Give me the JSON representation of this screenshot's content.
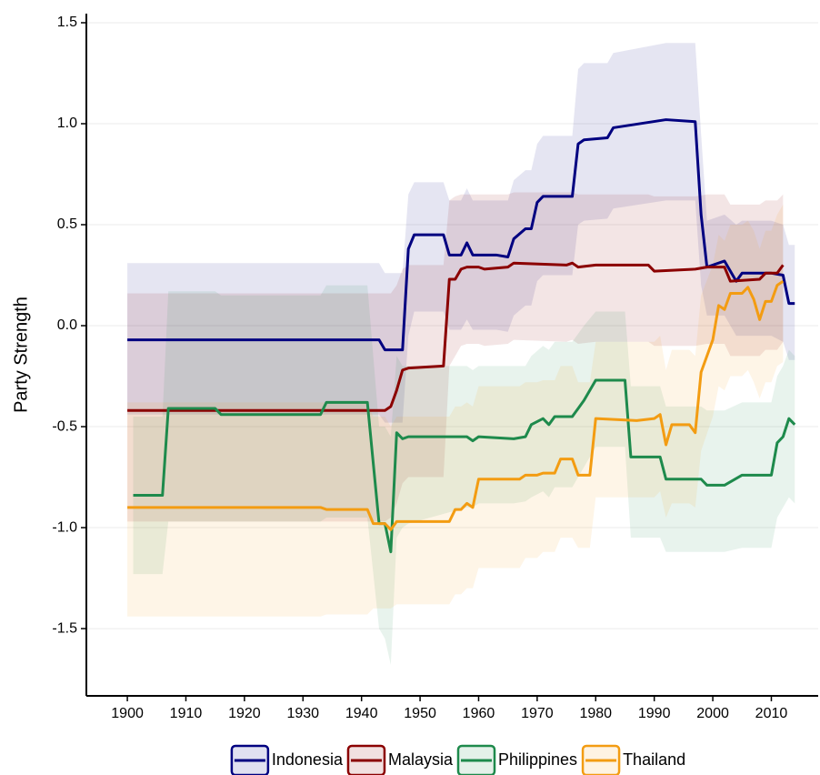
{
  "chart_data": {
    "type": "line",
    "y_label": "Party Strength",
    "xlim": [
      1893,
      2018
    ],
    "ylim": [
      -1.833,
      1.545
    ],
    "xticks": [
      1900,
      1910,
      1920,
      1930,
      1940,
      1950,
      1960,
      1970,
      1980,
      1990,
      2000,
      2010
    ],
    "yticks": [
      -1.5,
      {
        "value": -1,
        "label": "-1.0"
      },
      -0.5,
      {
        "value": 0,
        "label": "0.0"
      },
      0.5,
      {
        "value": 1,
        "label": "1.0"
      },
      1.5
    ],
    "grid": true,
    "legend": "bottom",
    "series": [
      {
        "name": "Indonesia",
        "color": "#000080",
        "x": [
          1900,
          1942,
          1943,
          1944,
          1947,
          1948,
          1949,
          1954,
          1955,
          1957,
          1958,
          1959,
          1963,
          1965,
          1966,
          1968,
          1969,
          1970,
          1971,
          1976,
          1977,
          1978,
          1982,
          1983,
          1992,
          1997,
          1998,
          1999,
          2002,
          2004,
          2005,
          2010,
          2012,
          2013,
          2014
        ],
        "values": [
          -0.07,
          -0.07,
          -0.07,
          -0.12,
          -0.12,
          0.38,
          0.45,
          0.45,
          0.35,
          0.35,
          0.41,
          0.35,
          0.35,
          0.34,
          0.43,
          0.48,
          0.48,
          0.61,
          0.64,
          0.64,
          0.9,
          0.92,
          0.93,
          0.98,
          1.02,
          1.01,
          0.55,
          0.29,
          0.32,
          0.22,
          0.26,
          0.26,
          0.25,
          0.11,
          0.11
        ],
        "lower": [
          -0.44,
          -0.44,
          -0.44,
          -0.48,
          -0.48,
          -0.05,
          0.07,
          0.07,
          -0.02,
          -0.02,
          0.03,
          -0.02,
          -0.02,
          -0.03,
          0.05,
          0.1,
          0.1,
          0.22,
          0.25,
          0.25,
          0.5,
          0.52,
          0.53,
          0.58,
          0.62,
          0.62,
          0.2,
          0.05,
          0.05,
          -0.05,
          -0.05,
          -0.05,
          -0.08,
          -0.17,
          -0.17
        ],
        "upper": [
          0.31,
          0.31,
          0.31,
          0.26,
          0.26,
          0.65,
          0.71,
          0.71,
          0.62,
          0.62,
          0.68,
          0.62,
          0.62,
          0.62,
          0.72,
          0.77,
          0.77,
          0.9,
          0.94,
          0.94,
          1.27,
          1.3,
          1.3,
          1.35,
          1.4,
          1.4,
          0.95,
          0.52,
          0.55,
          0.5,
          0.52,
          0.52,
          0.5,
          0.4,
          0.4
        ]
      },
      {
        "name": "Malaysia",
        "color": "#8b0000",
        "x": [
          1900,
          1944,
          1945,
          1946,
          1947,
          1948,
          1954,
          1955,
          1956,
          1957,
          1958,
          1960,
          1961,
          1965,
          1966,
          1975,
          1976,
          1977,
          1980,
          1989,
          1990,
          1997,
          1999,
          2002,
          2003,
          2008,
          2009,
          2011,
          2012
        ],
        "values": [
          -0.42,
          -0.42,
          -0.4,
          -0.32,
          -0.22,
          -0.21,
          -0.2,
          0.23,
          0.23,
          0.28,
          0.29,
          0.29,
          0.28,
          0.29,
          0.31,
          0.3,
          0.31,
          0.29,
          0.3,
          0.3,
          0.27,
          0.28,
          0.29,
          0.29,
          0.22,
          0.23,
          0.26,
          0.26,
          0.3
        ],
        "lower": [
          -0.97,
          -0.97,
          -0.95,
          -0.88,
          -0.78,
          -0.75,
          -0.75,
          -0.2,
          -0.15,
          -0.1,
          -0.09,
          -0.09,
          -0.1,
          -0.09,
          -0.07,
          -0.08,
          -0.07,
          -0.09,
          -0.08,
          -0.08,
          -0.1,
          -0.1,
          -0.09,
          -0.09,
          -0.15,
          -0.15,
          -0.12,
          -0.12,
          -0.08
        ],
        "upper": [
          0.16,
          0.16,
          0.16,
          0.2,
          0.28,
          0.3,
          0.3,
          0.62,
          0.64,
          0.65,
          0.65,
          0.65,
          0.65,
          0.65,
          0.66,
          0.66,
          0.66,
          0.65,
          0.65,
          0.65,
          0.64,
          0.64,
          0.65,
          0.65,
          0.6,
          0.6,
          0.62,
          0.62,
          0.65
        ]
      },
      {
        "name": "Philippines",
        "color": "#1e8a4c",
        "x": [
          1901,
          1906,
          1907,
          1915,
          1916,
          1933,
          1934,
          1941,
          1943,
          1944,
          1945,
          1946,
          1947,
          1948,
          1958,
          1959,
          1960,
          1966,
          1968,
          1969,
          1971,
          1972,
          1973,
          1976,
          1978,
          1980,
          1985,
          1986,
          1991,
          1992,
          1998,
          1999,
          2002,
          2005,
          2010,
          2011,
          2012,
          2013,
          2014
        ],
        "values": [
          -0.84,
          -0.84,
          -0.41,
          -0.41,
          -0.44,
          -0.44,
          -0.38,
          -0.38,
          -0.98,
          -0.98,
          -1.12,
          -0.53,
          -0.56,
          -0.55,
          -0.55,
          -0.57,
          -0.55,
          -0.56,
          -0.55,
          -0.49,
          -0.46,
          -0.49,
          -0.45,
          -0.45,
          -0.37,
          -0.27,
          -0.27,
          -0.65,
          -0.65,
          -0.76,
          -0.76,
          -0.79,
          -0.79,
          -0.74,
          -0.74,
          -0.58,
          -0.55,
          -0.46,
          -0.49
        ],
        "lower": [
          -1.23,
          -1.23,
          -0.97,
          -0.97,
          -0.97,
          -0.97,
          -0.95,
          -0.95,
          -1.5,
          -1.55,
          -1.68,
          -1.05,
          -1.0,
          -0.98,
          -0.9,
          -0.9,
          -0.88,
          -0.88,
          -0.87,
          -0.85,
          -0.82,
          -0.85,
          -0.8,
          -0.8,
          -0.7,
          -0.6,
          -0.6,
          -1.05,
          -1.05,
          -1.12,
          -1.12,
          -1.12,
          -1.12,
          -1.1,
          -1.1,
          -0.95,
          -0.9,
          -0.85,
          -0.88
        ],
        "upper": [
          -0.45,
          -0.45,
          0.17,
          0.17,
          0.15,
          0.15,
          0.2,
          0.2,
          -0.5,
          -0.5,
          -0.55,
          -0.15,
          -0.2,
          -0.2,
          -0.2,
          -0.22,
          -0.2,
          -0.2,
          -0.2,
          -0.15,
          -0.1,
          -0.12,
          -0.08,
          -0.08,
          0.0,
          0.07,
          0.07,
          -0.3,
          -0.3,
          -0.4,
          -0.4,
          -0.42,
          -0.42,
          -0.38,
          -0.38,
          -0.25,
          -0.2,
          -0.12,
          -0.15
        ]
      },
      {
        "name": "Thailand",
        "color": "#f39c12",
        "x": [
          1900,
          1933,
          1934,
          1941,
          1942,
          1944,
          1945,
          1946,
          1955,
          1956,
          1957,
          1958,
          1959,
          1960,
          1967,
          1968,
          1970,
          1971,
          1973,
          1974,
          1976,
          1977,
          1979,
          1980,
          1987,
          1990,
          1991,
          1992,
          1993,
          1996,
          1997,
          1998,
          2000,
          2001,
          2002,
          2003,
          2005,
          2006,
          2007,
          2008,
          2009,
          2010,
          2011,
          2012
        ],
        "values": [
          -0.9,
          -0.9,
          -0.91,
          -0.91,
          -0.98,
          -0.98,
          -1.01,
          -0.97,
          -0.97,
          -0.91,
          -0.91,
          -0.88,
          -0.9,
          -0.76,
          -0.76,
          -0.74,
          -0.74,
          -0.73,
          -0.73,
          -0.66,
          -0.66,
          -0.74,
          -0.74,
          -0.46,
          -0.47,
          -0.46,
          -0.44,
          -0.59,
          -0.49,
          -0.49,
          -0.53,
          -0.23,
          -0.07,
          0.1,
          0.08,
          0.16,
          0.16,
          0.19,
          0.13,
          0.03,
          0.12,
          0.12,
          0.2,
          0.22
        ],
        "lower": [
          -1.44,
          -1.44,
          -1.43,
          -1.43,
          -1.4,
          -1.4,
          -1.4,
          -1.38,
          -1.38,
          -1.33,
          -1.33,
          -1.3,
          -1.3,
          -1.2,
          -1.2,
          -1.15,
          -1.15,
          -1.12,
          -1.12,
          -1.05,
          -1.05,
          -1.1,
          -1.1,
          -0.85,
          -0.85,
          -0.85,
          -0.82,
          -0.95,
          -0.88,
          -0.88,
          -0.9,
          -0.62,
          -0.45,
          -0.3,
          -0.32,
          -0.25,
          -0.25,
          -0.22,
          -0.28,
          -0.36,
          -0.28,
          -0.28,
          -0.2,
          -0.18
        ],
        "upper": [
          -0.38,
          -0.38,
          -0.38,
          -0.38,
          -0.45,
          -0.45,
          -0.5,
          -0.45,
          -0.45,
          -0.4,
          -0.4,
          -0.38,
          -0.4,
          -0.3,
          -0.3,
          -0.28,
          -0.28,
          -0.27,
          -0.27,
          -0.2,
          -0.2,
          -0.28,
          -0.28,
          -0.08,
          -0.08,
          -0.08,
          -0.05,
          -0.22,
          -0.12,
          -0.12,
          -0.15,
          0.15,
          0.3,
          0.45,
          0.42,
          0.5,
          0.5,
          0.52,
          0.47,
          0.38,
          0.47,
          0.47,
          0.55,
          0.6
        ]
      }
    ]
  }
}
